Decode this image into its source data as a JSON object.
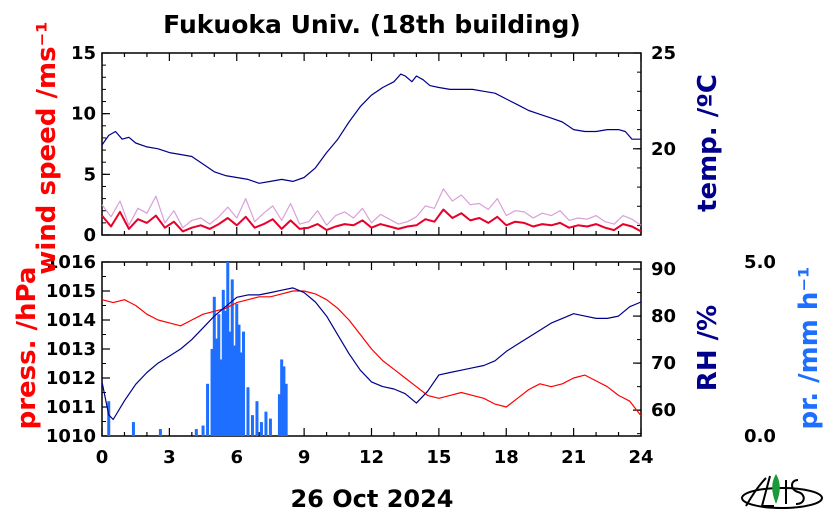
{
  "title": "Fukuoka Univ. (18th building)",
  "date_label": "26 Oct 2024",
  "colors": {
    "wind": "#e8002a",
    "wind_raw": "#d9a0d9",
    "temp": "#00008b",
    "press": "#ff0000",
    "rh": "#00008b",
    "precip": "#1f6fff",
    "axis": "#000000"
  },
  "chart_data": [
    {
      "type": "line",
      "panel": "top",
      "x_range": [
        0,
        24
      ],
      "left_axis": {
        "label": "wind speed /ms⁻¹",
        "range": [
          0,
          15
        ],
        "ticks": [
          "0",
          "5",
          "10",
          "15"
        ]
      },
      "right_axis": {
        "label": "temp. /ºC",
        "range": [
          15.5,
          25
        ],
        "ticks": [
          "20",
          "25"
        ]
      },
      "series": [
        {
          "axis": "right",
          "style": "line",
          "color": "temp",
          "x": [
            0,
            0.3,
            0.6,
            0.9,
            1.2,
            1.5,
            2.0,
            2.5,
            3.0,
            3.5,
            4.0,
            4.5,
            5.0,
            5.5,
            6.0,
            6.5,
            7.0,
            7.5,
            8.0,
            8.5,
            9.0,
            9.5,
            10.0,
            10.5,
            11.0,
            11.5,
            12.0,
            12.5,
            13.0,
            13.3,
            13.5,
            13.8,
            14.0,
            14.3,
            14.6,
            15.0,
            15.5,
            16.0,
            16.5,
            17.0,
            17.5,
            18.0,
            18.5,
            19.0,
            19.5,
            20.0,
            20.5,
            21.0,
            21.5,
            22.0,
            22.5,
            23.0,
            23.3,
            23.6,
            24.0
          ],
          "y": [
            20.2,
            20.7,
            20.9,
            20.5,
            20.6,
            20.3,
            20.1,
            20.0,
            19.8,
            19.7,
            19.6,
            19.2,
            18.8,
            18.6,
            18.5,
            18.4,
            18.2,
            18.3,
            18.4,
            18.3,
            18.5,
            19.0,
            19.8,
            20.5,
            21.4,
            22.2,
            22.8,
            23.2,
            23.5,
            23.9,
            23.8,
            23.5,
            23.8,
            23.6,
            23.3,
            23.2,
            23.1,
            23.1,
            23.1,
            23.0,
            22.9,
            22.6,
            22.3,
            22.0,
            21.8,
            21.6,
            21.4,
            21.0,
            20.9,
            20.9,
            21.0,
            21.0,
            20.9,
            20.5,
            20.5
          ]
        },
        {
          "axis": "left",
          "style": "raw",
          "color": "wind_raw",
          "x": [
            0,
            0.4,
            0.8,
            1.2,
            1.6,
            2.0,
            2.4,
            2.8,
            3.2,
            3.6,
            4.0,
            4.4,
            4.8,
            5.2,
            5.6,
            6.0,
            6.4,
            6.8,
            7.2,
            7.6,
            8.0,
            8.4,
            8.8,
            9.2,
            9.6,
            10.0,
            10.4,
            10.8,
            11.2,
            11.6,
            12.0,
            12.4,
            12.8,
            13.2,
            13.6,
            14.0,
            14.4,
            14.8,
            15.2,
            15.6,
            16.0,
            16.4,
            16.8,
            17.2,
            17.6,
            18.0,
            18.4,
            18.8,
            19.2,
            19.6,
            20.0,
            20.4,
            20.8,
            21.2,
            21.6,
            22.0,
            22.4,
            22.8,
            23.2,
            23.6,
            24.0
          ],
          "y": [
            2.5,
            1.5,
            2.8,
            0.8,
            2.2,
            1.8,
            3.2,
            1.0,
            2.0,
            0.6,
            1.2,
            1.4,
            0.9,
            1.5,
            2.3,
            1.4,
            3.0,
            1.1,
            1.8,
            2.4,
            1.2,
            2.6,
            0.9,
            1.1,
            2.0,
            0.8,
            1.6,
            1.9,
            1.4,
            2.2,
            1.0,
            1.7,
            1.3,
            0.9,
            1.1,
            1.5,
            2.4,
            2.2,
            3.8,
            2.8,
            3.3,
            2.5,
            2.6,
            2.1,
            3.0,
            1.6,
            2.0,
            1.9,
            1.4,
            1.8,
            1.6,
            2.0,
            1.2,
            1.4,
            1.3,
            1.6,
            1.1,
            0.9,
            1.6,
            1.3,
            0.8
          ]
        },
        {
          "axis": "left",
          "style": "line",
          "color": "wind",
          "x": [
            0,
            0.4,
            0.8,
            1.2,
            1.6,
            2.0,
            2.4,
            2.8,
            3.2,
            3.6,
            4.0,
            4.4,
            4.8,
            5.2,
            5.6,
            6.0,
            6.4,
            6.8,
            7.2,
            7.6,
            8.0,
            8.4,
            8.8,
            9.2,
            9.6,
            10.0,
            10.4,
            10.8,
            11.2,
            11.6,
            12.0,
            12.4,
            12.8,
            13.2,
            13.6,
            14.0,
            14.4,
            14.8,
            15.2,
            15.6,
            16.0,
            16.4,
            16.8,
            17.2,
            17.6,
            18.0,
            18.4,
            18.8,
            19.2,
            19.6,
            20.0,
            20.4,
            20.8,
            21.2,
            21.6,
            22.0,
            22.4,
            22.8,
            23.2,
            23.6,
            24.0
          ],
          "y": [
            1.6,
            0.7,
            1.9,
            0.5,
            1.3,
            1.0,
            1.6,
            0.6,
            1.1,
            0.3,
            0.6,
            0.8,
            0.5,
            0.9,
            1.4,
            0.8,
            1.5,
            0.6,
            0.9,
            1.3,
            0.5,
            1.2,
            0.5,
            0.6,
            0.9,
            0.4,
            0.7,
            0.9,
            0.8,
            1.2,
            0.6,
            0.9,
            0.7,
            0.5,
            0.7,
            0.8,
            1.3,
            1.1,
            2.1,
            1.4,
            1.8,
            1.2,
            1.4,
            1.0,
            1.5,
            0.8,
            1.1,
            1.0,
            0.7,
            0.9,
            0.8,
            1.0,
            0.6,
            0.8,
            0.7,
            0.9,
            0.6,
            0.4,
            0.9,
            0.7,
            0.3
          ]
        }
      ]
    },
    {
      "type": "line",
      "panel": "bottom",
      "x_label": "26 Oct 2024",
      "x_range": [
        0,
        24
      ],
      "x_ticks": [
        "0",
        "3",
        "6",
        "9",
        "12",
        "15",
        "18",
        "21",
        "24"
      ],
      "left_axis": {
        "label": "press. /hPa",
        "range": [
          1010,
          1016
        ],
        "ticks": [
          "1010",
          "1011",
          "1012",
          "1013",
          "1014",
          "1015",
          "1016"
        ]
      },
      "right_axis": {
        "label": "RH /%",
        "range": [
          54.5,
          91.5
        ],
        "ticks": [
          "60",
          "70",
          "80",
          "90"
        ]
      },
      "precip_axis": {
        "label": "pr. /mm h⁻¹",
        "range": [
          0,
          5.0
        ],
        "ticks": [
          "0.0",
          "5.0"
        ]
      },
      "series": [
        {
          "axis": "left",
          "style": "line",
          "color": "press",
          "x": [
            0,
            0.5,
            1.0,
            1.5,
            2.0,
            2.5,
            3.0,
            3.5,
            4.0,
            4.5,
            5.0,
            5.5,
            6.0,
            6.5,
            7.0,
            7.5,
            8.0,
            8.5,
            9.0,
            9.5,
            10.0,
            10.5,
            11.0,
            11.5,
            12.0,
            12.5,
            13.0,
            13.5,
            14.0,
            14.5,
            15.0,
            15.5,
            16.0,
            16.5,
            17.0,
            17.5,
            18.0,
            18.5,
            19.0,
            19.5,
            20.0,
            20.5,
            21.0,
            21.5,
            22.0,
            22.5,
            23.0,
            23.5,
            24.0
          ],
          "y": [
            1014.7,
            1014.6,
            1014.7,
            1014.5,
            1014.2,
            1014.0,
            1013.9,
            1013.8,
            1014.0,
            1014.2,
            1014.3,
            1014.4,
            1014.6,
            1014.7,
            1014.8,
            1014.8,
            1014.9,
            1015.0,
            1015.0,
            1014.9,
            1014.7,
            1014.4,
            1014.0,
            1013.5,
            1013.0,
            1012.6,
            1012.3,
            1012.0,
            1011.7,
            1011.4,
            1011.3,
            1011.4,
            1011.5,
            1011.4,
            1011.3,
            1011.1,
            1011.0,
            1011.3,
            1011.6,
            1011.8,
            1011.7,
            1011.8,
            1012.0,
            1012.1,
            1011.9,
            1011.7,
            1011.4,
            1011.2,
            1010.7
          ]
        },
        {
          "axis": "right",
          "style": "line",
          "color": "rh",
          "x": [
            0,
            0.3,
            0.5,
            1.0,
            1.5,
            2.0,
            2.5,
            3.0,
            3.5,
            4.0,
            4.5,
            5.0,
            5.5,
            6.0,
            6.5,
            7.0,
            7.5,
            8.0,
            8.5,
            9.0,
            9.5,
            10.0,
            10.5,
            11.0,
            11.5,
            12.0,
            12.5,
            13.0,
            13.5,
            14.0,
            14.5,
            15.0,
            15.5,
            16.0,
            16.5,
            17.0,
            17.5,
            18.0,
            18.5,
            19.0,
            19.5,
            20.0,
            20.5,
            21.0,
            21.5,
            22.0,
            22.5,
            23.0,
            23.5,
            24.0
          ],
          "y": [
            66.0,
            59.0,
            58.0,
            62.0,
            65.5,
            68.0,
            70.0,
            71.5,
            73.0,
            75.0,
            77.5,
            80.0,
            82.0,
            84.0,
            84.5,
            84.5,
            85.0,
            85.5,
            86.0,
            85.0,
            83.0,
            80.0,
            76.0,
            72.0,
            68.5,
            66.0,
            65.0,
            64.5,
            63.5,
            61.5,
            64.0,
            67.5,
            68.0,
            68.5,
            69.0,
            69.5,
            70.5,
            72.5,
            74.0,
            75.5,
            77.0,
            78.5,
            79.5,
            80.5,
            80.0,
            79.5,
            79.5,
            80.0,
            82.0,
            83.0
          ]
        },
        {
          "axis": "precip",
          "style": "bars",
          "color": "precip",
          "x": [
            0.3,
            1.4,
            2.6,
            4.2,
            4.5,
            4.7,
            4.9,
            5.0,
            5.1,
            5.2,
            5.3,
            5.4,
            5.5,
            5.6,
            5.7,
            5.8,
            5.9,
            6.0,
            6.1,
            6.2,
            6.3,
            6.5,
            6.7,
            6.9,
            7.1,
            7.3,
            7.5,
            7.9,
            8.0,
            8.1,
            8.2
          ],
          "y": [
            1.0,
            0.4,
            0.2,
            0.2,
            0.3,
            1.5,
            2.5,
            4.0,
            2.8,
            3.5,
            2.2,
            4.2,
            3.6,
            5.0,
            3.0,
            4.5,
            2.6,
            3.8,
            3.2,
            2.4,
            3.0,
            1.4,
            0.6,
            1.0,
            0.4,
            0.7,
            0.5,
            1.2,
            2.2,
            2.0,
            1.5
          ]
        }
      ]
    }
  ]
}
